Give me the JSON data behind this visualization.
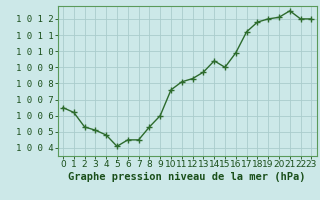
{
  "x": [
    0,
    1,
    2,
    3,
    4,
    5,
    6,
    7,
    8,
    9,
    10,
    11,
    12,
    13,
    14,
    15,
    16,
    17,
    18,
    19,
    20,
    21,
    22,
    23
  ],
  "y": [
    1006.5,
    1006.2,
    1005.3,
    1005.1,
    1004.8,
    1004.1,
    1004.5,
    1004.5,
    1005.3,
    1006.0,
    1007.6,
    1008.1,
    1008.3,
    1008.7,
    1009.4,
    1009.0,
    1009.9,
    1011.2,
    1011.8,
    1012.0,
    1012.1,
    1012.5,
    1012.0,
    1012.0
  ],
  "line_color": "#2d6b2d",
  "marker": "+",
  "marker_size": 4,
  "line_width": 1.0,
  "bg_color": "#cce8e8",
  "grid_color": "#aacccc",
  "xlabel": "Graphe pression niveau de la mer (hPa)",
  "xlabel_color": "#1a4f1a",
  "xlabel_fontsize": 7.5,
  "tick_color": "#1a4f1a",
  "tick_fontsize": 6.5,
  "ylim": [
    1003.5,
    1012.8
  ],
  "yticks": [
    1004,
    1005,
    1006,
    1007,
    1008,
    1009,
    1010,
    1011,
    1012
  ],
  "xlim": [
    -0.5,
    23.5
  ],
  "xticks": [
    0,
    1,
    2,
    3,
    4,
    5,
    6,
    7,
    8,
    9,
    10,
    11,
    12,
    13,
    14,
    15,
    16,
    17,
    18,
    19,
    20,
    21,
    22,
    23
  ]
}
